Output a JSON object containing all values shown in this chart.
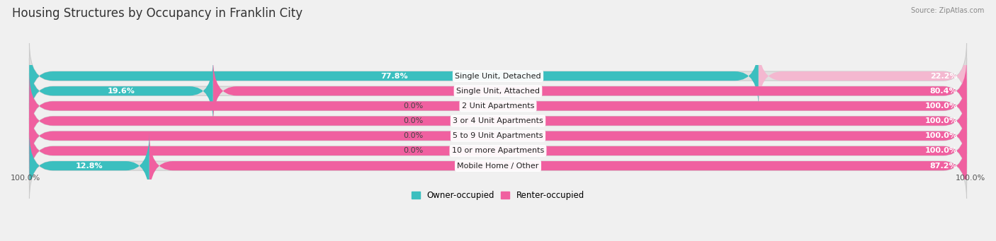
{
  "title": "Housing Structures by Occupancy in Franklin City",
  "source": "Source: ZipAtlas.com",
  "categories": [
    "Single Unit, Detached",
    "Single Unit, Attached",
    "2 Unit Apartments",
    "3 or 4 Unit Apartments",
    "5 to 9 Unit Apartments",
    "10 or more Apartments",
    "Mobile Home / Other"
  ],
  "owner_pct": [
    77.8,
    19.6,
    0.0,
    0.0,
    0.0,
    0.0,
    12.8
  ],
  "renter_pct": [
    22.2,
    80.4,
    100.0,
    100.0,
    100.0,
    100.0,
    87.2
  ],
  "owner_color": "#3bbfbf",
  "renter_colors": [
    "#f4b8d0",
    "#f060a0",
    "#f060a0",
    "#f060a0",
    "#f060a0",
    "#f060a0",
    "#f060a0"
  ],
  "bg_color": "#f0f0f0",
  "bar_bg_color": "#e0e0e0",
  "bar_stroke_color": "#cccccc",
  "title_fontsize": 12,
  "label_fontsize": 8,
  "bar_height": 0.62,
  "bottom_labels": [
    "100.0%",
    "100.0%"
  ]
}
